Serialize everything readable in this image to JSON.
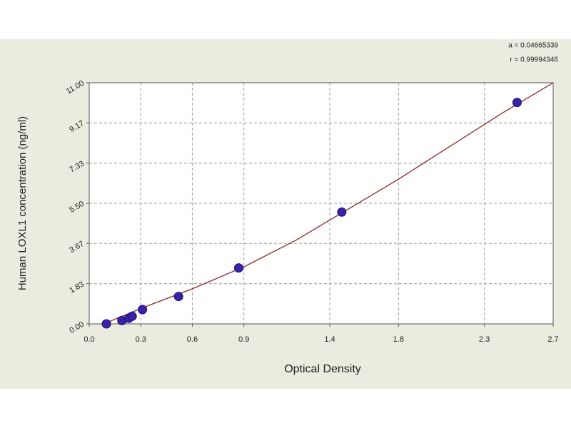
{
  "chart_data": {
    "type": "scatter",
    "annotations": [
      "a = 0.04665339",
      "r = 0.99994346"
    ],
    "x_label": "Optical Density",
    "y_label": "Human LOXL1 concentration (ng/ml)",
    "xlim": [
      0,
      2.7
    ],
    "ylim": [
      0,
      11
    ],
    "xticks": [
      {
        "value": 0,
        "label": "0.0"
      },
      0.3,
      0.6,
      0.9,
      1.4,
      1.8,
      2.3,
      2.7
    ],
    "yticks": [
      {
        "value": 0,
        "label": "0.00"
      },
      1.83,
      3.67,
      {
        "value": 5.5,
        "label": "5.50"
      },
      7.33,
      9.17,
      {
        "value": 11,
        "label": "11.00"
      }
    ],
    "grid": true,
    "series": [
      {
        "mode": "line",
        "color": "#8b2a2a",
        "x": [
          0.1,
          0.3,
          0.6,
          0.9,
          1.2,
          1.5,
          1.8,
          2.1,
          2.4,
          2.7
        ],
        "values": [
          0.05,
          0.7,
          1.6,
          2.6,
          3.8,
          5.2,
          6.6,
          8.1,
          9.6,
          11.0
        ]
      },
      {
        "mode": "markers",
        "color": "#3a22a8",
        "x": [
          0.1,
          0.19,
          0.23,
          0.25,
          0.31,
          0.52,
          0.87,
          1.47,
          2.49
        ],
        "values": [
          0,
          0.15,
          0.25,
          0.35,
          0.65,
          1.25,
          2.55,
          5.1,
          10.1
        ]
      }
    ]
  }
}
